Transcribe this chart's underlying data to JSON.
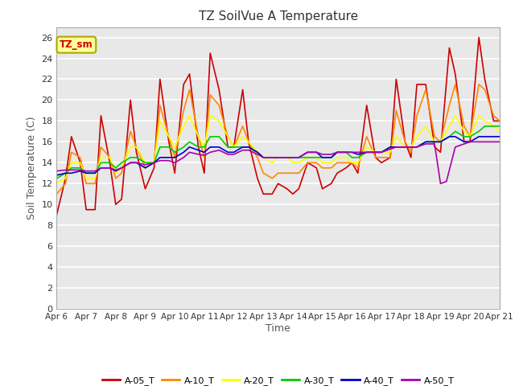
{
  "title": "TZ SoilVue A Temperature",
  "xlabel": "Time",
  "ylabel": "Soil Temperature (C)",
  "ylim": [
    0,
    27
  ],
  "yticks": [
    0,
    2,
    4,
    6,
    8,
    10,
    12,
    14,
    16,
    18,
    20,
    22,
    24,
    26
  ],
  "fig_facecolor": "#ffffff",
  "plot_facecolor": "#e8e8e8",
  "grid_color": "#ffffff",
  "annotation_text": "TZ_sm",
  "annotation_color": "#cc0000",
  "annotation_bg": "#ffff99",
  "annotation_border": "#aaaa00",
  "series": {
    "A-05_T": {
      "color": "#cc0000",
      "x": [
        6.0,
        6.3,
        6.5,
        6.8,
        7.0,
        7.3,
        7.5,
        7.8,
        8.0,
        8.2,
        8.5,
        8.7,
        9.0,
        9.3,
        9.5,
        9.8,
        10.0,
        10.3,
        10.5,
        10.8,
        11.0,
        11.2,
        11.5,
        11.8,
        12.0,
        12.3,
        12.5,
        12.8,
        13.0,
        13.3,
        13.5,
        13.8,
        14.0,
        14.2,
        14.5,
        14.8,
        15.0,
        15.3,
        15.5,
        15.8,
        16.0,
        16.2,
        16.5,
        16.8,
        17.0,
        17.3,
        17.5,
        17.8,
        18.0,
        18.2,
        18.5,
        18.8,
        19.0,
        19.3,
        19.5,
        19.8,
        20.0,
        20.3,
        20.5,
        20.8,
        21.0
      ],
      "y": [
        9.0,
        12.5,
        16.5,
        14.0,
        9.5,
        9.5,
        18.5,
        14.0,
        10.0,
        10.5,
        20.0,
        15.0,
        11.5,
        13.5,
        22.0,
        16.0,
        13.0,
        21.5,
        22.5,
        15.5,
        13.0,
        24.5,
        21.0,
        15.5,
        15.5,
        21.0,
        16.0,
        12.5,
        11.0,
        11.0,
        12.0,
        11.5,
        11.0,
        11.5,
        14.0,
        13.5,
        11.5,
        12.0,
        13.0,
        13.5,
        14.0,
        13.0,
        19.5,
        14.5,
        14.0,
        14.5,
        22.0,
        16.0,
        14.5,
        21.5,
        21.5,
        15.5,
        15.0,
        25.0,
        22.5,
        16.0,
        16.0,
        26.0,
        22.0,
        18.0,
        18.0
      ]
    },
    "A-10_T": {
      "color": "#ff8800",
      "x": [
        6.0,
        6.3,
        6.5,
        6.8,
        7.0,
        7.3,
        7.5,
        7.8,
        8.0,
        8.2,
        8.5,
        8.7,
        9.0,
        9.3,
        9.5,
        9.8,
        10.0,
        10.3,
        10.5,
        10.8,
        11.0,
        11.2,
        11.5,
        11.8,
        12.0,
        12.3,
        12.5,
        12.8,
        13.0,
        13.3,
        13.5,
        13.8,
        14.0,
        14.2,
        14.5,
        14.8,
        15.0,
        15.3,
        15.5,
        15.8,
        16.0,
        16.2,
        16.5,
        16.8,
        17.0,
        17.3,
        17.5,
        17.8,
        18.0,
        18.2,
        18.5,
        18.8,
        19.0,
        19.3,
        19.5,
        19.8,
        20.0,
        20.3,
        20.5,
        20.8,
        21.0
      ],
      "y": [
        11.0,
        12.0,
        15.0,
        14.5,
        12.0,
        12.0,
        15.5,
        14.5,
        12.5,
        13.0,
        17.0,
        15.5,
        13.5,
        14.0,
        19.5,
        16.5,
        14.5,
        19.0,
        21.0,
        16.5,
        14.5,
        20.5,
        19.5,
        16.5,
        15.5,
        17.5,
        16.0,
        14.5,
        13.0,
        12.5,
        13.0,
        13.0,
        13.0,
        13.0,
        14.0,
        14.0,
        13.5,
        13.5,
        14.0,
        14.0,
        14.0,
        13.5,
        16.5,
        14.5,
        14.5,
        14.5,
        19.0,
        16.0,
        15.0,
        18.5,
        21.0,
        16.5,
        16.0,
        19.5,
        21.5,
        17.5,
        16.5,
        21.5,
        21.0,
        18.5,
        18.0
      ]
    },
    "A-20_T": {
      "color": "#ffff00",
      "x": [
        6.0,
        6.3,
        6.5,
        6.8,
        7.0,
        7.3,
        7.5,
        7.8,
        8.0,
        8.2,
        8.5,
        8.7,
        9.0,
        9.3,
        9.5,
        9.8,
        10.0,
        10.3,
        10.5,
        10.8,
        11.0,
        11.2,
        11.5,
        11.8,
        12.0,
        12.3,
        12.5,
        12.8,
        13.0,
        13.3,
        13.5,
        13.8,
        14.0,
        14.2,
        14.5,
        14.8,
        15.0,
        15.3,
        15.5,
        15.8,
        16.0,
        16.2,
        16.5,
        16.8,
        17.0,
        17.3,
        17.5,
        17.8,
        18.0,
        18.2,
        18.5,
        18.8,
        19.0,
        19.3,
        19.5,
        19.8,
        20.0,
        20.3,
        20.5,
        20.8,
        21.0
      ],
      "y": [
        12.0,
        12.5,
        14.0,
        14.0,
        12.5,
        12.5,
        14.5,
        14.5,
        13.0,
        13.5,
        15.5,
        15.5,
        14.0,
        14.0,
        18.0,
        16.5,
        15.5,
        17.5,
        18.5,
        16.5,
        15.5,
        18.5,
        18.0,
        16.5,
        15.5,
        16.5,
        16.0,
        15.0,
        14.5,
        14.0,
        14.5,
        14.5,
        14.0,
        14.0,
        14.5,
        14.5,
        14.0,
        14.0,
        14.5,
        14.5,
        14.0,
        14.0,
        15.5,
        15.0,
        15.0,
        15.0,
        16.5,
        15.5,
        15.5,
        16.5,
        17.5,
        16.0,
        16.0,
        17.5,
        18.5,
        17.0,
        16.5,
        18.5,
        18.0,
        17.5,
        17.0
      ]
    },
    "A-30_T": {
      "color": "#00cc00",
      "x": [
        6.0,
        6.3,
        6.5,
        6.8,
        7.0,
        7.3,
        7.5,
        7.8,
        8.0,
        8.2,
        8.5,
        8.7,
        9.0,
        9.3,
        9.5,
        9.8,
        10.0,
        10.3,
        10.5,
        10.8,
        11.0,
        11.2,
        11.5,
        11.8,
        12.0,
        12.3,
        12.5,
        12.8,
        13.0,
        13.3,
        13.5,
        13.8,
        14.0,
        14.2,
        14.5,
        14.8,
        15.0,
        15.3,
        15.5,
        15.8,
        16.0,
        16.2,
        16.5,
        16.8,
        17.0,
        17.3,
        17.5,
        17.8,
        18.0,
        18.2,
        18.5,
        18.8,
        19.0,
        19.3,
        19.5,
        19.8,
        20.0,
        20.3,
        20.5,
        20.8,
        21.0
      ],
      "y": [
        12.5,
        13.0,
        13.5,
        13.5,
        13.0,
        13.0,
        14.0,
        14.0,
        13.5,
        14.0,
        14.5,
        14.5,
        14.0,
        14.0,
        15.5,
        15.5,
        15.0,
        15.5,
        16.0,
        15.5,
        15.5,
        16.5,
        16.5,
        15.5,
        15.5,
        15.5,
        15.5,
        15.0,
        14.5,
        14.5,
        14.5,
        14.5,
        14.5,
        14.5,
        14.5,
        14.5,
        14.5,
        14.5,
        15.0,
        15.0,
        14.5,
        14.5,
        15.0,
        15.0,
        15.0,
        15.5,
        15.5,
        15.5,
        15.5,
        15.5,
        16.0,
        16.0,
        16.0,
        16.5,
        17.0,
        16.5,
        16.5,
        17.0,
        17.5,
        17.5,
        17.5
      ]
    },
    "A-40_T": {
      "color": "#0000cc",
      "x": [
        6.0,
        6.3,
        6.5,
        6.8,
        7.0,
        7.3,
        7.5,
        7.8,
        8.0,
        8.2,
        8.5,
        8.7,
        9.0,
        9.3,
        9.5,
        9.8,
        10.0,
        10.3,
        10.5,
        10.8,
        11.0,
        11.2,
        11.5,
        11.8,
        12.0,
        12.3,
        12.5,
        12.8,
        13.0,
        13.3,
        13.5,
        13.8,
        14.0,
        14.2,
        14.5,
        14.8,
        15.0,
        15.3,
        15.5,
        15.8,
        16.0,
        16.2,
        16.5,
        16.8,
        17.0,
        17.3,
        17.5,
        17.8,
        18.0,
        18.2,
        18.5,
        18.8,
        19.0,
        19.3,
        19.5,
        19.8,
        20.0,
        20.3,
        20.5,
        20.8,
        21.0
      ],
      "y": [
        12.8,
        13.0,
        13.0,
        13.2,
        13.0,
        13.0,
        13.5,
        13.5,
        13.2,
        13.5,
        14.0,
        14.0,
        13.5,
        14.0,
        14.5,
        14.5,
        14.5,
        15.0,
        15.5,
        15.2,
        15.0,
        15.5,
        15.5,
        15.0,
        15.0,
        15.5,
        15.5,
        15.0,
        14.5,
        14.5,
        14.5,
        14.5,
        14.5,
        14.5,
        15.0,
        15.0,
        14.5,
        14.5,
        15.0,
        15.0,
        15.0,
        14.8,
        15.0,
        15.0,
        15.0,
        15.5,
        15.5,
        15.5,
        15.5,
        15.5,
        16.0,
        16.0,
        16.0,
        16.5,
        16.5,
        16.0,
        16.0,
        16.5,
        16.5,
        16.5,
        16.5
      ]
    },
    "A-50_T": {
      "color": "#aa00aa",
      "x": [
        6.0,
        6.3,
        6.5,
        6.8,
        7.0,
        7.3,
        7.5,
        7.8,
        8.0,
        8.2,
        8.5,
        8.7,
        9.0,
        9.3,
        9.5,
        9.8,
        10.0,
        10.3,
        10.5,
        10.8,
        11.0,
        11.2,
        11.5,
        11.8,
        12.0,
        12.3,
        12.5,
        12.8,
        13.0,
        13.3,
        13.5,
        13.8,
        14.0,
        14.2,
        14.5,
        14.8,
        15.0,
        15.3,
        15.5,
        15.8,
        16.0,
        16.2,
        16.5,
        16.8,
        17.0,
        17.3,
        17.5,
        17.8,
        18.0,
        18.2,
        18.5,
        18.8,
        19.0,
        19.2,
        19.5,
        19.8,
        20.0,
        20.3,
        20.5,
        20.8,
        21.0
      ],
      "y": [
        13.2,
        13.3,
        13.3,
        13.3,
        13.2,
        13.2,
        13.5,
        13.5,
        13.3,
        13.5,
        14.0,
        14.0,
        13.8,
        14.0,
        14.2,
        14.2,
        14.0,
        14.5,
        15.0,
        14.8,
        14.7,
        15.0,
        15.2,
        14.8,
        14.8,
        15.2,
        15.2,
        14.8,
        14.5,
        14.5,
        14.5,
        14.5,
        14.5,
        14.5,
        15.0,
        15.0,
        14.8,
        14.8,
        15.0,
        15.0,
        15.0,
        15.0,
        15.0,
        15.0,
        15.0,
        15.3,
        15.5,
        15.5,
        15.5,
        15.5,
        15.8,
        15.8,
        12.0,
        12.2,
        15.5,
        15.8,
        16.0,
        16.0,
        16.0,
        16.0,
        16.0
      ]
    }
  },
  "xticks": [
    6,
    7,
    8,
    9,
    10,
    11,
    12,
    13,
    14,
    15,
    16,
    17,
    18,
    19,
    20,
    21
  ],
  "xtick_labels": [
    "Apr 6",
    "Apr 7",
    "Apr 8",
    "Apr 9",
    "Apr 10",
    "Apr 11",
    "Apr 12",
    "Apr 13",
    "Apr 14",
    "Apr 15",
    "Apr 16",
    "Apr 17",
    "Apr 18",
    "Apr 19",
    "Apr 20",
    "Apr 21"
  ]
}
